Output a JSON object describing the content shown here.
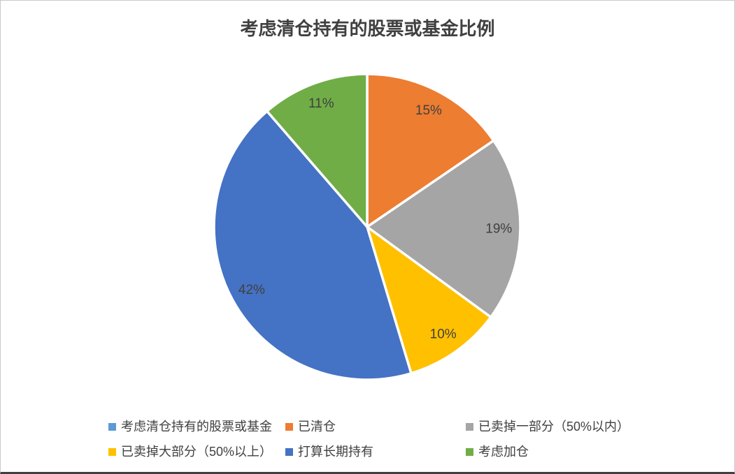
{
  "chart_data": {
    "type": "pie",
    "title": "考虑清仓持有的股票或基金比例",
    "categories": [
      "已清仓",
      "已卖掉一部分（50%以内）",
      "已卖掉大部分（50%以上）",
      "打算长期持有",
      "考虑加仓"
    ],
    "values": [
      15,
      19,
      10,
      42,
      11
    ],
    "labels": [
      "15%",
      "19%",
      "10%",
      "42%",
      "11%"
    ],
    "colors": [
      "#ED7D31",
      "#A5A5A5",
      "#FFC000",
      "#4472C4",
      "#70AD47"
    ],
    "start_angle_deg": 0,
    "direction": "clockwise",
    "legend_position": "bottom",
    "legend": [
      {
        "label": "考虑清仓持有的股票或基金",
        "color": "#5B9BD5"
      },
      {
        "label": "已清仓",
        "color": "#ED7D31"
      },
      {
        "label": "已卖掉一部分（50%以内）",
        "color": "#A5A5A5"
      },
      {
        "label": "已卖掉大部分（50%以上）",
        "color": "#FFC000"
      },
      {
        "label": "打算长期持有",
        "color": "#4472C4"
      },
      {
        "label": "考虑加仓",
        "color": "#70AD47"
      }
    ],
    "text_color": "#404040"
  }
}
